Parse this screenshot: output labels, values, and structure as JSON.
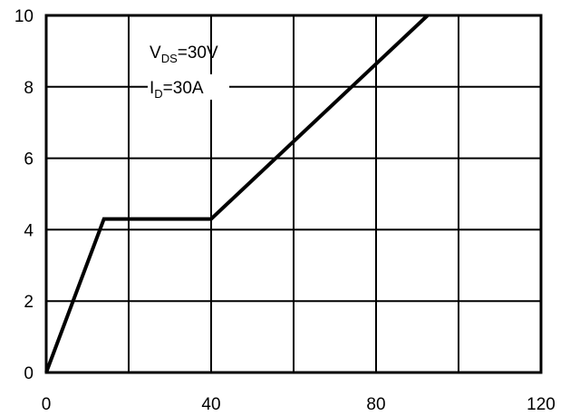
{
  "chart_data": {
    "type": "line",
    "title": "",
    "xlabel": "",
    "ylabel": "",
    "xlim": [
      0,
      120
    ],
    "ylim": [
      0,
      10
    ],
    "x_ticks": [
      0,
      40,
      80,
      120
    ],
    "x_tick_labels": [
      "0",
      "40",
      "80",
      "120"
    ],
    "y_ticks": [
      0,
      2,
      4,
      6,
      8,
      10
    ],
    "y_tick_labels": [
      "0",
      "2",
      "4",
      "6",
      "8",
      "10"
    ],
    "x_grid_lines": [
      0,
      20,
      40,
      60,
      80,
      100,
      120
    ],
    "y_grid_lines": [
      0,
      2,
      4,
      6,
      8,
      10
    ],
    "grid": true,
    "series": [
      {
        "points": [
          {
            "x": 0,
            "y": 0
          },
          {
            "x": 14,
            "y": 4.3
          },
          {
            "x": 40,
            "y": 4.3
          },
          {
            "x": 92.5,
            "y": 10
          }
        ]
      }
    ],
    "annotations": [
      {
        "main": "V",
        "sub": "DS",
        "rest": "=30V"
      },
      {
        "main": "I",
        "sub": "D",
        "rest": "=30A"
      }
    ]
  }
}
